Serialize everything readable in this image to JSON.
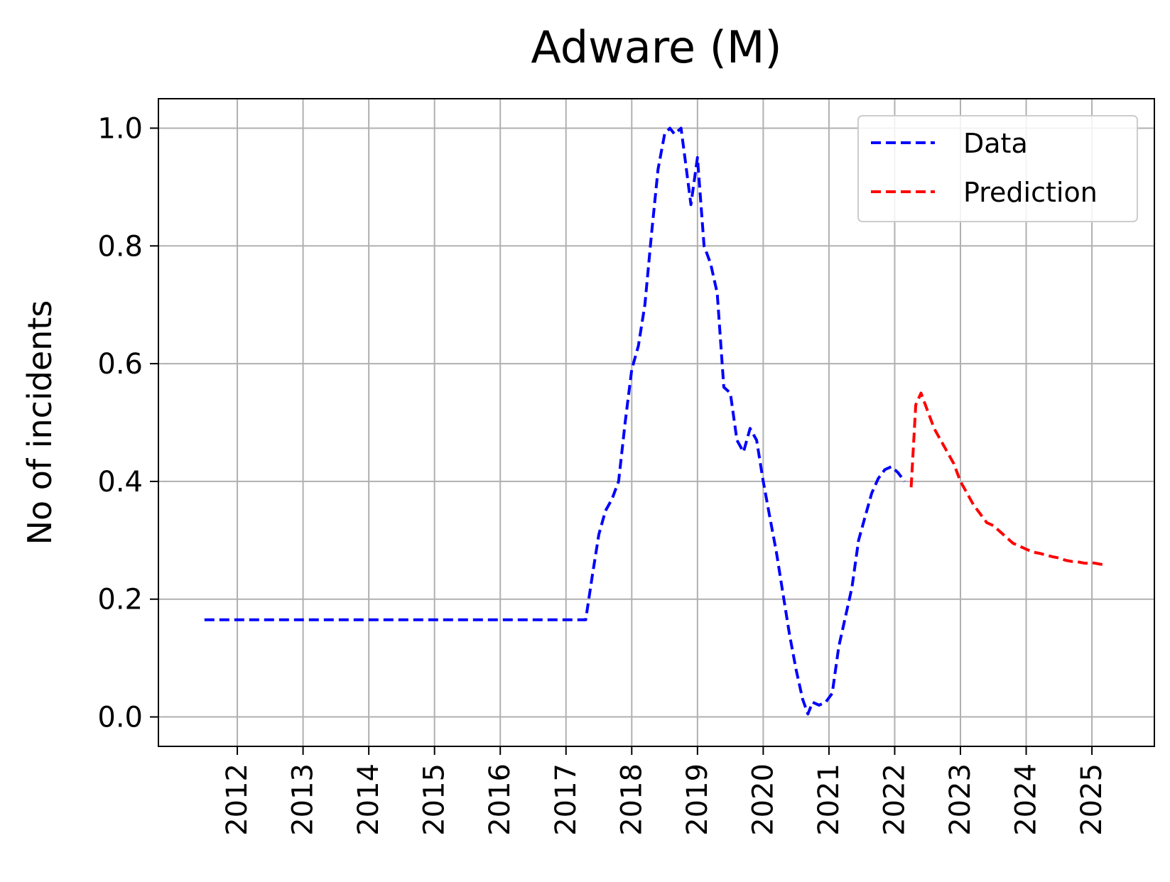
{
  "chart_data": {
    "type": "line",
    "title": "Adware (M)",
    "xlabel": "",
    "ylabel": "No of incidents",
    "xlim": [
      2010.8,
      2025.95
    ],
    "ylim": [
      -0.05,
      1.05
    ],
    "xticks": [
      2012,
      2013,
      2014,
      2015,
      2016,
      2017,
      2018,
      2019,
      2020,
      2021,
      2022,
      2023,
      2024,
      2025
    ],
    "xtick_labels": [
      "2012",
      "2013",
      "2014",
      "2015",
      "2016",
      "2017",
      "2018",
      "2019",
      "2020",
      "2021",
      "2022",
      "2023",
      "2024",
      "2025"
    ],
    "yticks": [
      0.0,
      0.2,
      0.4,
      0.6,
      0.8,
      1.0
    ],
    "ytick_labels": [
      "0.0",
      "0.2",
      "0.4",
      "0.6",
      "0.8",
      "1.0"
    ],
    "grid": true,
    "legend_position": "top-right",
    "series": [
      {
        "name": "Data",
        "color": "#0000ff",
        "style": "dashed",
        "x": [
          2011.5,
          2012.0,
          2013.0,
          2014.0,
          2015.0,
          2016.0,
          2017.0,
          2017.3,
          2017.4,
          2017.5,
          2017.6,
          2017.7,
          2017.8,
          2017.9,
          2018.0,
          2018.1,
          2018.2,
          2018.3,
          2018.4,
          2018.5,
          2018.58,
          2018.65,
          2018.75,
          2018.82,
          2018.9,
          2019.0,
          2019.1,
          2019.2,
          2019.3,
          2019.4,
          2019.5,
          2019.6,
          2019.7,
          2019.8,
          2019.9,
          2020.0,
          2020.1,
          2020.2,
          2020.3,
          2020.4,
          2020.5,
          2020.6,
          2020.68,
          2020.75,
          2020.85,
          2020.95,
          2021.05,
          2021.15,
          2021.25,
          2021.35,
          2021.45,
          2021.55,
          2021.65,
          2021.75,
          2021.85,
          2021.95,
          2022.05,
          2022.15
        ],
        "values": [
          0.165,
          0.165,
          0.165,
          0.165,
          0.165,
          0.165,
          0.165,
          0.165,
          0.24,
          0.31,
          0.35,
          0.37,
          0.4,
          0.5,
          0.59,
          0.63,
          0.7,
          0.82,
          0.93,
          0.99,
          1.0,
          0.99,
          1.0,
          0.94,
          0.87,
          0.95,
          0.8,
          0.77,
          0.72,
          0.56,
          0.55,
          0.47,
          0.45,
          0.49,
          0.47,
          0.4,
          0.34,
          0.28,
          0.21,
          0.14,
          0.08,
          0.03,
          0.005,
          0.025,
          0.02,
          0.025,
          0.04,
          0.12,
          0.17,
          0.22,
          0.3,
          0.34,
          0.38,
          0.405,
          0.42,
          0.425,
          0.415,
          0.4
        ]
      },
      {
        "name": "Prediction",
        "color": "#ff0000",
        "style": "dashed",
        "x": [
          2022.25,
          2022.32,
          2022.4,
          2022.5,
          2022.6,
          2022.7,
          2022.8,
          2022.9,
          2023.0,
          2023.1,
          2023.2,
          2023.3,
          2023.4,
          2023.5,
          2023.6,
          2023.7,
          2023.8,
          2023.9,
          2024.0,
          2024.1,
          2024.2,
          2024.3,
          2024.4,
          2024.5,
          2024.6,
          2024.7,
          2024.8,
          2024.9,
          2025.0,
          2025.1,
          2025.2
        ],
        "values": [
          0.39,
          0.53,
          0.55,
          0.52,
          0.49,
          0.47,
          0.45,
          0.43,
          0.4,
          0.38,
          0.36,
          0.345,
          0.33,
          0.325,
          0.315,
          0.305,
          0.295,
          0.29,
          0.285,
          0.28,
          0.278,
          0.275,
          0.272,
          0.27,
          0.266,
          0.264,
          0.263,
          0.261,
          0.262,
          0.26,
          0.258
        ]
      }
    ]
  }
}
